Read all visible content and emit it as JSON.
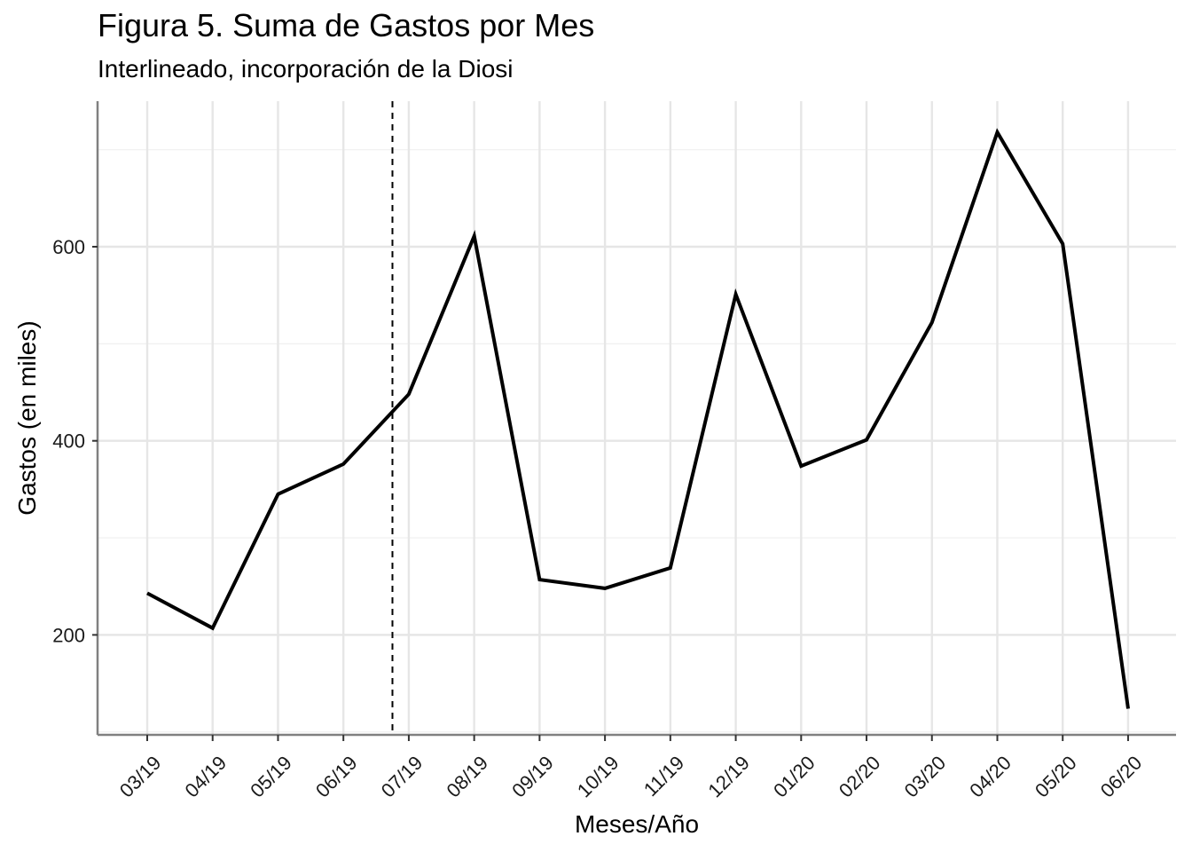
{
  "chart_data": {
    "type": "line",
    "title": "Figura 5. Suma de Gastos por Mes",
    "subtitle": "Interlineado, incorporación de la Diosi",
    "xlabel": "Meses/Año",
    "ylabel": "Gastos (en miles)",
    "categories": [
      "03/19",
      "04/19",
      "05/19",
      "06/19",
      "07/19",
      "08/19",
      "09/19",
      "10/19",
      "11/19",
      "12/19",
      "01/20",
      "02/20",
      "03/20",
      "04/20",
      "05/20",
      "06/20"
    ],
    "series": [
      {
        "values": [
          243,
          207,
          345,
          376,
          448,
          611,
          257,
          248,
          269,
          551,
          374,
          401,
          522,
          718,
          603,
          124
        ],
        "color": "#000000"
      }
    ],
    "yticks": [
      200,
      400,
      600
    ],
    "ylim": [
      97,
      750
    ],
    "grid": true,
    "vline": {
      "position": "between 06/19 and 07/19",
      "style": "dashed"
    }
  }
}
